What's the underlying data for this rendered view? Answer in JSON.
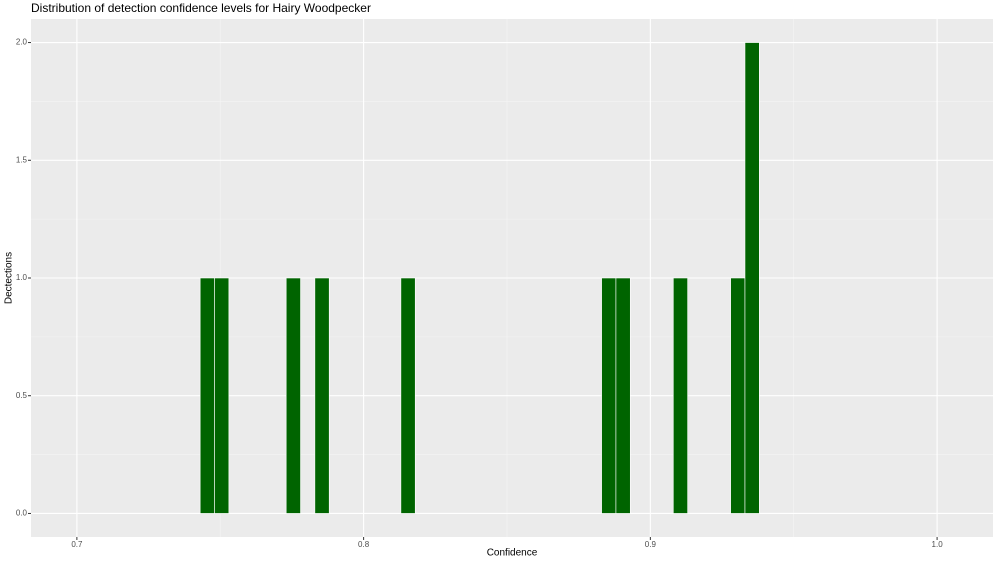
{
  "chart_data": {
    "type": "histogram",
    "title": "Distribution of detection confidence levels for Hairy Woodpecker",
    "x_label": "Confidence",
    "y_label": "Dectections",
    "bins": [
      0.743,
      0.748,
      0.753,
      0.758,
      0.763,
      0.768,
      0.773,
      0.778,
      0.783,
      0.788,
      0.793,
      0.798,
      0.803,
      0.808,
      0.813,
      0.818,
      0.823,
      0.828,
      0.833,
      0.838,
      0.843,
      0.848,
      0.853,
      0.858,
      0.863,
      0.868,
      0.873,
      0.878,
      0.883,
      0.888,
      0.893,
      0.898,
      0.903,
      0.908,
      0.913,
      0.918,
      0.923,
      0.928,
      0.933,
      0.938
    ],
    "values": [
      1,
      1,
      0,
      0,
      0,
      0,
      1,
      0,
      1,
      0,
      0,
      0,
      0,
      0,
      1,
      0,
      0,
      0,
      0,
      0,
      0,
      0,
      0,
      0,
      0,
      0,
      0,
      0,
      1,
      1,
      0,
      0,
      0,
      1,
      0,
      0,
      0,
      1,
      2
    ],
    "color": "#006400",
    "xlim": [
      0.684,
      1.0195
    ],
    "ylim": [
      -0.1,
      2.1
    ],
    "xticks": [
      0.7,
      0.8,
      0.9,
      {
        "value": 1.0,
        "label": "1.0"
      }
    ],
    "yticks": [
      {
        "value": 0,
        "label": "0.0"
      },
      0.5,
      {
        "value": 1,
        "label": "1.0"
      },
      1.5,
      {
        "value": 2,
        "label": "2.0"
      }
    ],
    "grid": true
  }
}
